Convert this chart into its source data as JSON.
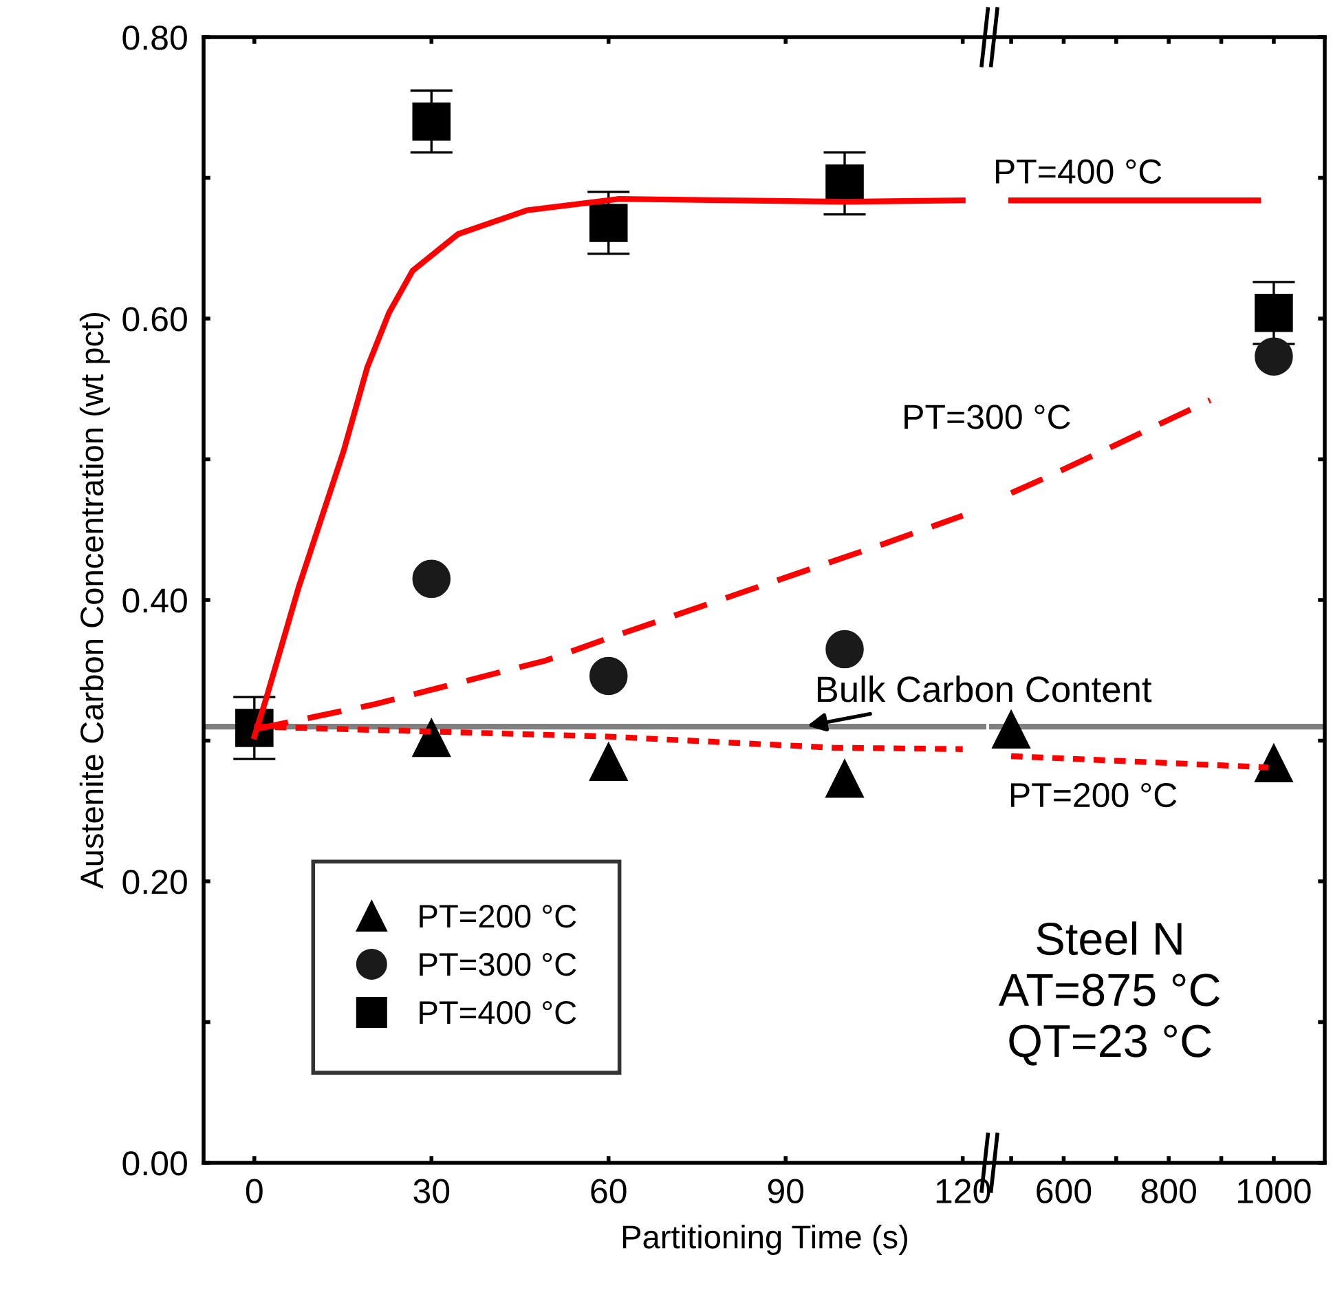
{
  "chart_data": [
    {
      "type": "scatter",
      "xlabel": "Partitioning Time (s)",
      "ylabel": "Austenite Carbon Concentration (wt pct)",
      "xlim": [
        -8.6,
        124
      ],
      "xticks": [
        0,
        30,
        60,
        90,
        120
      ],
      "ylim": [
        0,
        0.8
      ],
      "yticks": [
        {
          "value": 0,
          "label": "0.00"
        },
        {
          "value": 0.1,
          "label": null
        },
        {
          "value": 0.2,
          "label": "0.20"
        },
        {
          "value": 0.3,
          "label": null
        },
        {
          "value": 0.4,
          "label": "0.40"
        },
        {
          "value": 0.5,
          "label": null
        },
        {
          "value": 0.6,
          "label": "0.60"
        },
        {
          "value": 0.7,
          "label": null
        },
        {
          "value": 0.8,
          "label": "0.80"
        }
      ],
      "grid": false,
      "legend": "bottom left",
      "ref_lines": [
        {
          "axis": "y",
          "value": 0.31,
          "color": "#808080"
        }
      ],
      "series": [
        {
          "type": "line",
          "line_style": "solid",
          "color": "#ff0000",
          "x": [
            0,
            2,
            7.5,
            15.2,
            19.1,
            22.8,
            26.8,
            34.5,
            46.2,
            61.8,
            100,
            120
          ],
          "values": [
            0.303,
            0.33,
            0.409,
            0.507,
            0.565,
            0.604,
            0.634,
            0.66,
            0.677,
            0.685,
            0.683,
            0.684
          ]
        },
        {
          "type": "line",
          "line_style": "dashed",
          "color": "#ff0000",
          "x": [
            0,
            20.5,
            49.4,
            59.4,
            106.7,
            120
          ],
          "values": [
            0.308,
            0.326,
            0.357,
            0.372,
            0.44,
            0.46
          ]
        },
        {
          "type": "line",
          "line_style": "dotted",
          "color": "#ff0000",
          "x": [
            0,
            59.4,
            98,
            120
          ],
          "values": [
            0.31,
            0.303,
            0.295,
            0.294
          ]
        },
        {
          "name": "PT=200 °C",
          "marker": "triangle",
          "color": "#000000",
          "x": [
            30,
            60,
            100
          ],
          "values": [
            0.302,
            0.285,
            0.273
          ]
        },
        {
          "name": "PT=300 °C",
          "marker": "circle",
          "color": "#1a1a1a",
          "x": [
            30,
            60,
            100
          ],
          "values": [
            0.415,
            0.346,
            0.365
          ]
        },
        {
          "name": "PT=400 °C",
          "marker": "square",
          "color": "#000000",
          "x": [
            0,
            30,
            60,
            100
          ],
          "values": [
            0.309,
            0.74,
            0.668,
            0.696
          ],
          "errors": [
            0.022,
            0.022,
            0.022,
            0.022
          ]
        }
      ],
      "annotations": [
        {
          "text": "Bulk Carbon Content",
          "x": 93,
          "y": 0.31
        }
      ]
    },
    {
      "type": "scatter",
      "tick_labels": "x",
      "xlim": [
        458,
        1097
      ],
      "xticks": [
        {
          "value": 500,
          "label": null
        },
        600,
        {
          "value": 700,
          "label": null
        },
        800,
        {
          "value": 900,
          "label": null
        },
        1000
      ],
      "ylim": [
        0,
        0.8
      ],
      "yticks": [
        {
          "value": 0,
          "label": null
        },
        {
          "value": 0.1,
          "label": null
        },
        {
          "value": 0.2,
          "label": null
        },
        {
          "value": 0.3,
          "label": null
        },
        {
          "value": 0.4,
          "label": null
        },
        {
          "value": 0.5,
          "label": null
        },
        {
          "value": 0.6,
          "label": null
        },
        {
          "value": 0.7,
          "label": null
        },
        {
          "value": 0.8,
          "label": null
        }
      ],
      "grid": false,
      "ref_lines": [
        {
          "axis": "y",
          "value": 0.31,
          "color": "#808080"
        }
      ],
      "series": [
        {
          "type": "line",
          "line_style": "solid",
          "color": "#ff0000",
          "x": [
            500,
            670,
            970
          ],
          "values": [
            0.684,
            0.684,
            0.684
          ]
        },
        {
          "type": "line",
          "line_style": "dashed",
          "color": "#ff0000",
          "x": [
            500,
            578,
            675,
            879
          ],
          "values": [
            0.476,
            0.489,
            0.506,
            0.542
          ]
        },
        {
          "type": "line",
          "line_style": "dotted",
          "color": "#ff0000",
          "x": [
            500,
            990
          ],
          "values": [
            0.289,
            0.281
          ]
        },
        {
          "marker": "triangle",
          "color": "#000000",
          "x": [
            500,
            1000
          ],
          "values": [
            0.308,
            0.284
          ]
        },
        {
          "marker": "circle",
          "color": "#1a1a1a",
          "x": [
            1000
          ],
          "values": [
            0.573
          ]
        },
        {
          "marker": "square",
          "color": "#000000",
          "x": [
            1000
          ],
          "values": [
            0.604
          ],
          "errors": [
            0.022
          ]
        }
      ],
      "annotations": [
        "PT=400 °C",
        "PT=300 °C",
        "PT=200 °C",
        "Steel N\nAT=875 °C\nQT=23 °C"
      ]
    }
  ]
}
